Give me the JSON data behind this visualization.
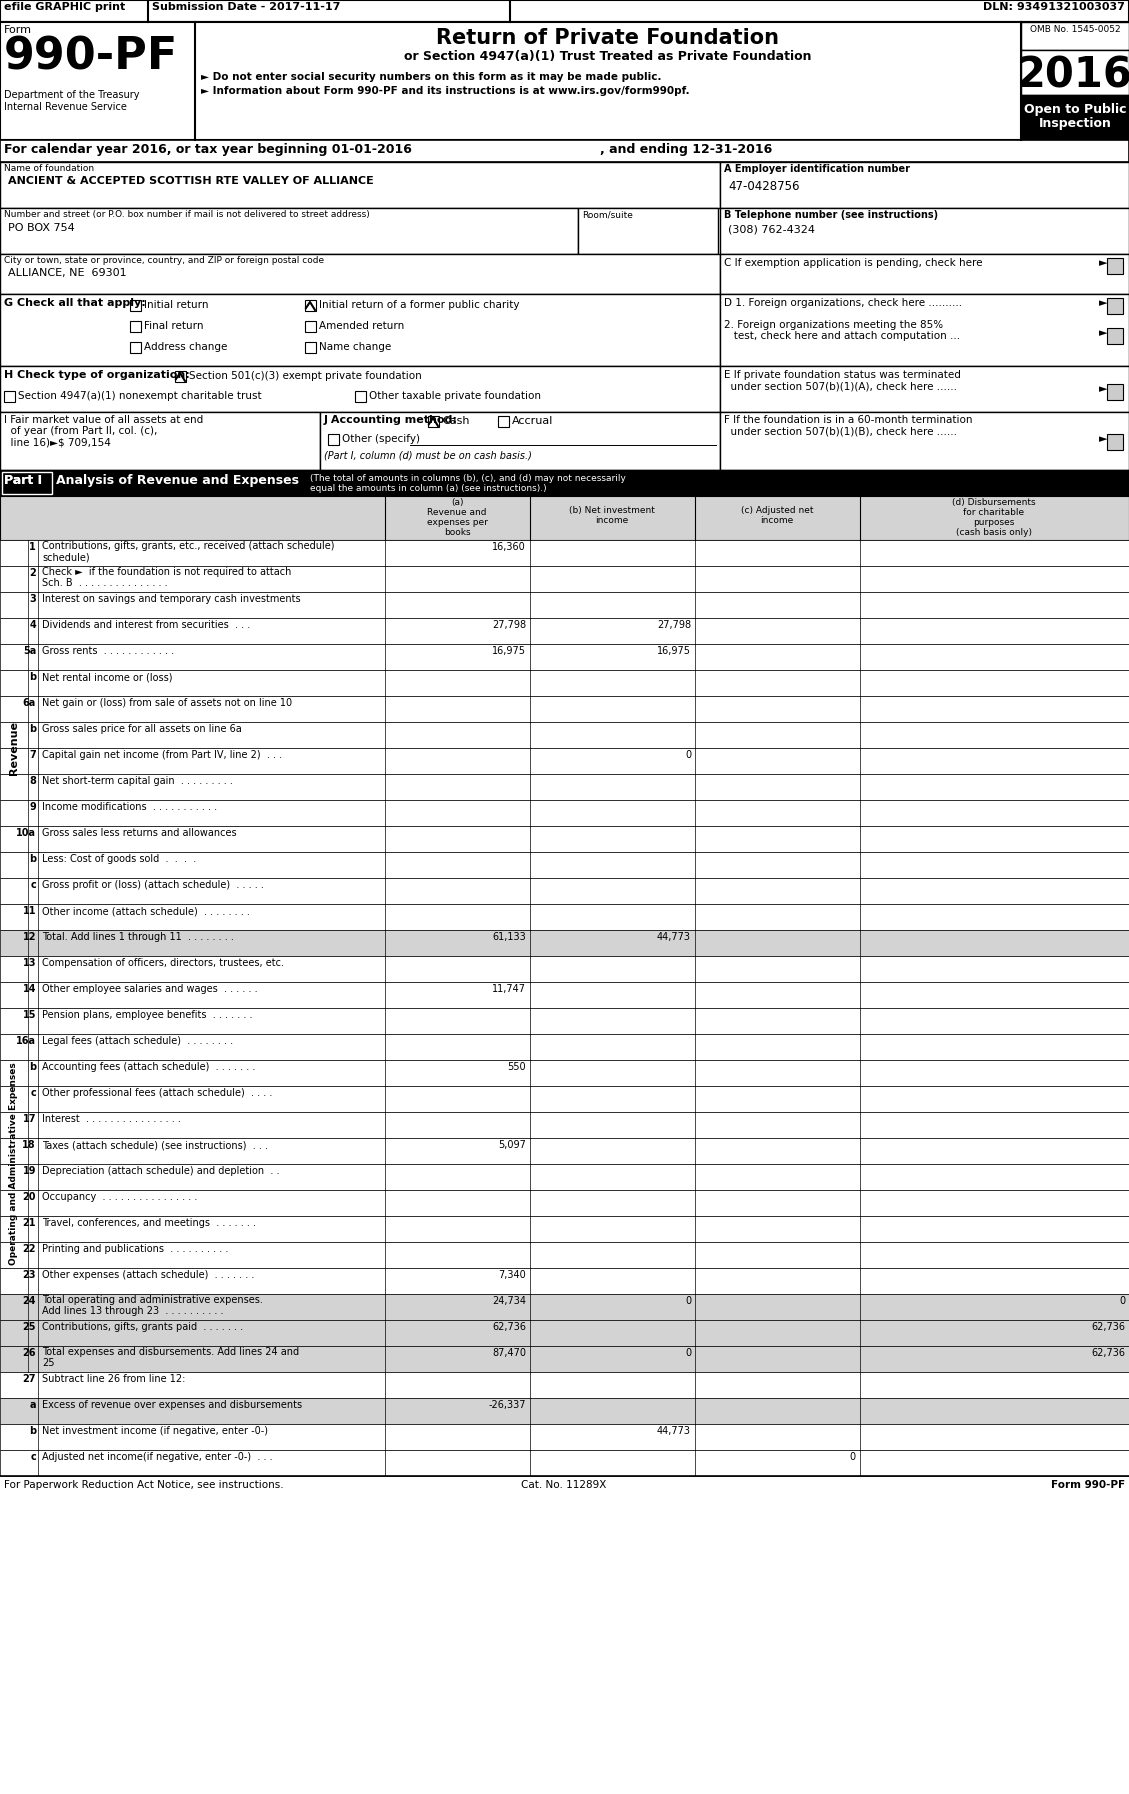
{
  "efile_text": "efile GRAPHIC print",
  "submission_date": "Submission Date - 2017-11-17",
  "dln": "DLN: 93491321003037",
  "form_number": "990-PF",
  "form_prefix": "Form",
  "title": "Return of Private Foundation",
  "subtitle1": "or Section 4947(a)(1) Trust Treated as Private Foundation",
  "subtitle2": "► Do not enter social security numbers on this form as it may be made public.",
  "subtitle3": "► Information about Form 990-PF and its instructions is at www.irs.gov/form990pf.",
  "year": "2016",
  "open_to_public": "Open to Public\nInspection",
  "omb": "OMB No. 1545-0052",
  "dept": "Department of the Treasury\nInternal Revenue Service",
  "calendar_line": "For calendar year 2016, or tax year beginning 01-01-2016",
  "and_ending": ", and ending 12-31-2016",
  "name_label": "Name of foundation",
  "name_value": "ANCIENT & ACCEPTED SCOTTISH RTE VALLEY OF ALLIANCE",
  "ein_label": "A Employer identification number",
  "ein_value": "47-0428756",
  "address_label": "Number and street (or P.O. box number if mail is not delivered to street address)",
  "room_label": "Room/suite",
  "address_value": "PO BOX 754",
  "phone_label": "B Telephone number (see instructions)",
  "phone_value": "(308) 762-4324",
  "city_label": "City or town, state or province, country, and ZIP or foreign postal code",
  "city_value": "ALLIANCE, NE  69301",
  "exemption_label": "C If exemption application is pending, check here",
  "g_label": "G Check all that apply:",
  "d1_label": "D 1. Foreign organizations, check here ..........",
  "d2_label": "2. Foreign organizations meeting the 85%\n   test, check here and attach computation ...",
  "h_label": "H Check type of organization:",
  "h_option1": "Section 501(c)(3) exempt private foundation",
  "h_option2": "Section 4947(a)(1) nonexempt charitable trust",
  "h_option3": "Other taxable private foundation",
  "e_label": "E If private foundation status was terminated\n  under section 507(b)(1)(A), check here ......",
  "i_label_1": "I Fair market value of all assets at end",
  "i_label_2": "  of year (from Part II, col. (c),",
  "i_label_3": "  line 16)►$ 709,154",
  "j_label": "J Accounting method:",
  "j_cash": "Cash",
  "j_accrual": "Accrual",
  "j_other": "Other (specify)",
  "j_note": "(Part I, column (d) must be on cash basis.)",
  "f_label": "F If the foundation is in a 60-month termination\n  under section 507(b)(1)(B), check here ......",
  "part1_header": "Part I",
  "part1_title": "Analysis of Revenue and Expenses",
  "part1_desc": "(The total of amounts in columns (b), (c), and (d) may not necessarily\nequal the amounts in column (a) (see instructions).)",
  "col_a_lines": [
    "(a)",
    "Revenue and",
    "expenses per",
    "books"
  ],
  "col_b_lines": [
    "(b) Net investment",
    "income"
  ],
  "col_c_lines": [
    "(c) Adjusted net",
    "income"
  ],
  "col_d_lines": [
    "(d) Disbursements",
    "for charitable",
    "purposes",
    "(cash basis only)"
  ],
  "rows": [
    {
      "num": "1",
      "label": "Contributions, gifts, grants, etc., received (attach schedule)",
      "a": "16,360",
      "b": "",
      "c": "",
      "d": "",
      "shade": false,
      "two_line": true,
      "label2": "schedule)"
    },
    {
      "num": "2",
      "label": "Check ►  if the foundation is not required to attach",
      "label2": "Sch. B  . . . . . . . . . . . . . . .",
      "a": "",
      "b": "",
      "c": "",
      "d": "",
      "shade": false,
      "two_line": true
    },
    {
      "num": "3",
      "label": "Interest on savings and temporary cash investments",
      "a": "",
      "b": "",
      "c": "",
      "d": "",
      "shade": false,
      "two_line": false
    },
    {
      "num": "4",
      "label": "Dividends and interest from securities  . . .",
      "a": "27,798",
      "b": "27,798",
      "c": "",
      "d": "",
      "shade": false,
      "two_line": false
    },
    {
      "num": "5a",
      "label": "Gross rents  . . . . . . . . . . . .",
      "a": "16,975",
      "b": "16,975",
      "c": "",
      "d": "",
      "shade": false,
      "two_line": false
    },
    {
      "num": "b",
      "label": "Net rental income or (loss)",
      "a": "",
      "b": "",
      "c": "",
      "d": "",
      "shade": false,
      "two_line": false
    },
    {
      "num": "6a",
      "label": "Net gain or (loss) from sale of assets not on line 10",
      "a": "",
      "b": "",
      "c": "",
      "d": "",
      "shade": false,
      "two_line": false
    },
    {
      "num": "b",
      "label": "Gross sales price for all assets on line 6a",
      "a": "",
      "b": "",
      "c": "",
      "d": "",
      "shade": false,
      "two_line": false
    },
    {
      "num": "7",
      "label": "Capital gain net income (from Part IV, line 2)  . . .",
      "a": "",
      "b": "0",
      "c": "",
      "d": "",
      "shade": false,
      "two_line": false
    },
    {
      "num": "8",
      "label": "Net short-term capital gain  . . . . . . . . .",
      "a": "",
      "b": "",
      "c": "",
      "d": "",
      "shade": false,
      "two_line": false
    },
    {
      "num": "9",
      "label": "Income modifications  . . . . . . . . . . .",
      "a": "",
      "b": "",
      "c": "",
      "d": "",
      "shade": false,
      "two_line": false
    },
    {
      "num": "10a",
      "label": "Gross sales less returns and allowances",
      "a": "",
      "b": "",
      "c": "",
      "d": "",
      "shade": false,
      "two_line": false
    },
    {
      "num": "b",
      "label": "Less: Cost of goods sold  .  .  .  .",
      "a": "",
      "b": "",
      "c": "",
      "d": "",
      "shade": false,
      "two_line": false
    },
    {
      "num": "c",
      "label": "Gross profit or (loss) (attach schedule)  . . . . .",
      "a": "",
      "b": "",
      "c": "",
      "d": "",
      "shade": false,
      "two_line": false
    },
    {
      "num": "11",
      "label": "Other income (attach schedule)  . . . . . . . .",
      "a": "",
      "b": "",
      "c": "",
      "d": "",
      "shade": false,
      "two_line": false
    },
    {
      "num": "12",
      "label": "Total. Add lines 1 through 11  . . . . . . . .",
      "a": "61,133",
      "b": "44,773",
      "c": "",
      "d": "",
      "shade": true,
      "two_line": false
    }
  ],
  "expense_rows": [
    {
      "num": "13",
      "label": "Compensation of officers, directors, trustees, etc.",
      "a": "",
      "b": "",
      "c": "",
      "d": "",
      "shade": false,
      "two_line": false
    },
    {
      "num": "14",
      "label": "Other employee salaries and wages  . . . . . .",
      "a": "11,747",
      "b": "",
      "c": "",
      "d": "",
      "shade": false,
      "two_line": false
    },
    {
      "num": "15",
      "label": "Pension plans, employee benefits  . . . . . . .",
      "a": "",
      "b": "",
      "c": "",
      "d": "",
      "shade": false,
      "two_line": false
    },
    {
      "num": "16a",
      "label": "Legal fees (attach schedule)  . . . . . . . .",
      "a": "",
      "b": "",
      "c": "",
      "d": "",
      "shade": false,
      "two_line": false
    },
    {
      "num": "b",
      "label": "Accounting fees (attach schedule)  . . . . . . .",
      "a": "550",
      "b": "",
      "c": "",
      "d": "",
      "shade": false,
      "two_line": false
    },
    {
      "num": "c",
      "label": "Other professional fees (attach schedule)  . . . .",
      "a": "",
      "b": "",
      "c": "",
      "d": "",
      "shade": false,
      "two_line": false
    },
    {
      "num": "17",
      "label": "Interest  . . . . . . . . . . . . . . . .",
      "a": "",
      "b": "",
      "c": "",
      "d": "",
      "shade": false,
      "two_line": false
    },
    {
      "num": "18",
      "label": "Taxes (attach schedule) (see instructions)  . . .",
      "a": "5,097",
      "b": "",
      "c": "",
      "d": "",
      "shade": false,
      "two_line": false
    },
    {
      "num": "19",
      "label": "Depreciation (attach schedule) and depletion  . .",
      "a": "",
      "b": "",
      "c": "",
      "d": "",
      "shade": false,
      "two_line": false
    },
    {
      "num": "20",
      "label": "Occupancy  . . . . . . . . . . . . . . . .",
      "a": "",
      "b": "",
      "c": "",
      "d": "",
      "shade": false,
      "two_line": false
    },
    {
      "num": "21",
      "label": "Travel, conferences, and meetings  . . . . . . .",
      "a": "",
      "b": "",
      "c": "",
      "d": "",
      "shade": false,
      "two_line": false
    },
    {
      "num": "22",
      "label": "Printing and publications  . . . . . . . . . .",
      "a": "",
      "b": "",
      "c": "",
      "d": "",
      "shade": false,
      "two_line": false
    },
    {
      "num": "23",
      "label": "Other expenses (attach schedule)  . . . . . . .",
      "a": "7,340",
      "b": "",
      "c": "",
      "d": "",
      "shade": false,
      "two_line": false
    },
    {
      "num": "24",
      "label": "Total operating and administrative expenses.",
      "label2": "Add lines 13 through 23  . . . . . . . . . .",
      "a": "24,734",
      "b": "0",
      "c": "",
      "d": "0",
      "shade": true,
      "two_line": true
    },
    {
      "num": "25",
      "label": "Contributions, gifts, grants paid  . . . . . . .",
      "a": "62,736",
      "b": "",
      "c": "",
      "d": "62,736",
      "shade": true,
      "two_line": false
    },
    {
      "num": "26",
      "label": "Total expenses and disbursements. Add lines 24 and",
      "label2": "25",
      "a": "87,470",
      "b": "0",
      "c": "",
      "d": "62,736",
      "shade": true,
      "two_line": true
    }
  ],
  "bottom_rows": [
    {
      "num": "27",
      "label": "Subtract line 26 from line 12:",
      "a": "",
      "b": "",
      "c": "",
      "d": "",
      "shade": false
    },
    {
      "num": "a",
      "label": "Excess of revenue over expenses and disbursements",
      "a": "-26,337",
      "b": "",
      "c": "",
      "d": "",
      "shade": true
    },
    {
      "num": "b",
      "label": "Net investment income (if negative, enter -0-)",
      "a": "",
      "b": "44,773",
      "c": "",
      "d": "",
      "shade": false
    },
    {
      "num": "c",
      "label": "Adjusted net income(if negative, enter -0-)  . . .",
      "a": "",
      "b": "",
      "c": "0",
      "d": "",
      "shade": false
    }
  ],
  "footer_left": "For Paperwork Reduction Act Notice, see instructions.",
  "footer_cat": "Cat. No. 11289X",
  "footer_form": "Form 990-PF",
  "side_revenue": "Revenue",
  "side_expenses": "Operating and Administrative Expenses"
}
